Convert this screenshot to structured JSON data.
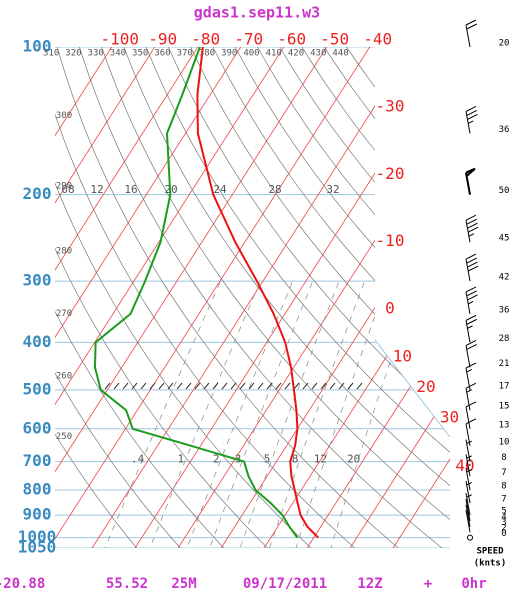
{
  "chart_data": {
    "type": "skew-t",
    "title": "gdas1.sep11.w3",
    "ylim": [
      1050,
      100
    ],
    "log_y": true,
    "yticks": [
      100,
      200,
      300,
      400,
      500,
      600,
      700,
      800,
      900,
      1000,
      1050
    ],
    "xticks": [
      -100,
      -90,
      -80,
      -70,
      -60,
      -50,
      -40,
      -30,
      -20,
      -10,
      0,
      10,
      20,
      30,
      40
    ],
    "theta_ticks": [
      250,
      260,
      270,
      280,
      290,
      300,
      310,
      320,
      330,
      340,
      350,
      360,
      370,
      380,
      390,
      400,
      410,
      420,
      430,
      440
    ],
    "mixing_ratio_labels": [
      ".4",
      "1",
      "2",
      "3",
      "5",
      "8",
      "12",
      "20"
    ],
    "upper_labels": [
      "08",
      "12",
      "16",
      "20",
      "24",
      "28",
      "32"
    ],
    "levels": [
      1000,
      950,
      900,
      850,
      800,
      750,
      700,
      650,
      600,
      550,
      500,
      450,
      400,
      350,
      300,
      250,
      200,
      150,
      125,
      100
    ],
    "series": [
      {
        "color": "#ee1111",
        "values": [
          21.0,
          16.9,
          13.6,
          11.1,
          8.5,
          5.7,
          3.2,
          2.0,
          0.0,
          -3.0,
          -6.6,
          -10.6,
          -15.7,
          -22.6,
          -31.4,
          -42.2,
          -54.4,
          -67.1,
          -73.0,
          -78.8
        ]
      },
      {
        "color": "#1a9e1a",
        "values": [
          16.2,
          12.7,
          9.4,
          4.8,
          -0.6,
          -4.3,
          -7.5,
          -22.2,
          -38.3,
          -42.6,
          -51.5,
          -56.2,
          -59.8,
          -55.9,
          -57.4,
          -59.6,
          -64.4,
          -74.3,
          -76.5,
          -79.5
        ]
      }
    ],
    "wind": {
      "levels": [
        100,
        150,
        200,
        250,
        300,
        350,
        400,
        450,
        500,
        550,
        600,
        650,
        700,
        750,
        800,
        850,
        900,
        925,
        950,
        975,
        1000
      ],
      "speeds": [
        20,
        36,
        50,
        45,
        42,
        36,
        28,
        21,
        17,
        15,
        13,
        10,
        8,
        7,
        8,
        7,
        5,
        4,
        3,
        2,
        0
      ]
    },
    "wind_label": [
      "SPEED",
      "(knts)"
    ],
    "footer": [
      "-20.88",
      "55.52",
      "25M",
      "09/17/2011",
      "12Z",
      "+",
      "0hr"
    ]
  }
}
